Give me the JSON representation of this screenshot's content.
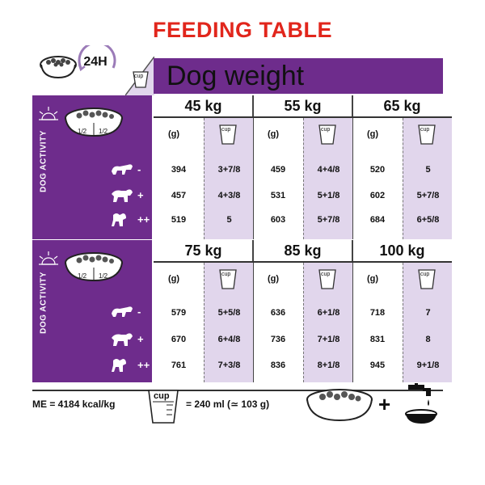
{
  "title": "FEEDING TABLE",
  "hours": "24H",
  "header": "Dog weight",
  "cup_label": "cup",
  "half_label": "1/2",
  "activity_label": "DOG ACTIVITY",
  "activity_signs": [
    "-",
    "+",
    "++"
  ],
  "gram_label": "(g)",
  "blocks": [
    {
      "weights": [
        "45 kg",
        "55 kg",
        "65 kg"
      ],
      "rows": [
        [
          [
            "394",
            "3+7/8"
          ],
          [
            "459",
            "4+4/8"
          ],
          [
            "520",
            "5"
          ]
        ],
        [
          [
            "457",
            "4+3/8"
          ],
          [
            "531",
            "5+1/8"
          ],
          [
            "602",
            "5+7/8"
          ]
        ],
        [
          [
            "519",
            "5"
          ],
          [
            "603",
            "5+7/8"
          ],
          [
            "684",
            "6+5/8"
          ]
        ]
      ]
    },
    {
      "weights": [
        "75 kg",
        "85 kg",
        "100 kg"
      ],
      "rows": [
        [
          [
            "579",
            "5+5/8"
          ],
          [
            "636",
            "6+1/8"
          ],
          [
            "718",
            "7"
          ]
        ],
        [
          [
            "670",
            "6+4/8"
          ],
          [
            "736",
            "7+1/8"
          ],
          [
            "831",
            "8"
          ]
        ],
        [
          [
            "761",
            "7+3/8"
          ],
          [
            "836",
            "8+1/8"
          ],
          [
            "945",
            "9+1/8"
          ]
        ]
      ]
    }
  ],
  "footer": {
    "me": "ME = 4184 kcal/kg",
    "cup_equiv": "= 240 ml (≃ 103 g)",
    "plus": "+"
  },
  "colors": {
    "purple": "#6e2c8c",
    "lavender": "#e1d6ec",
    "title_red": "#e1261c"
  }
}
